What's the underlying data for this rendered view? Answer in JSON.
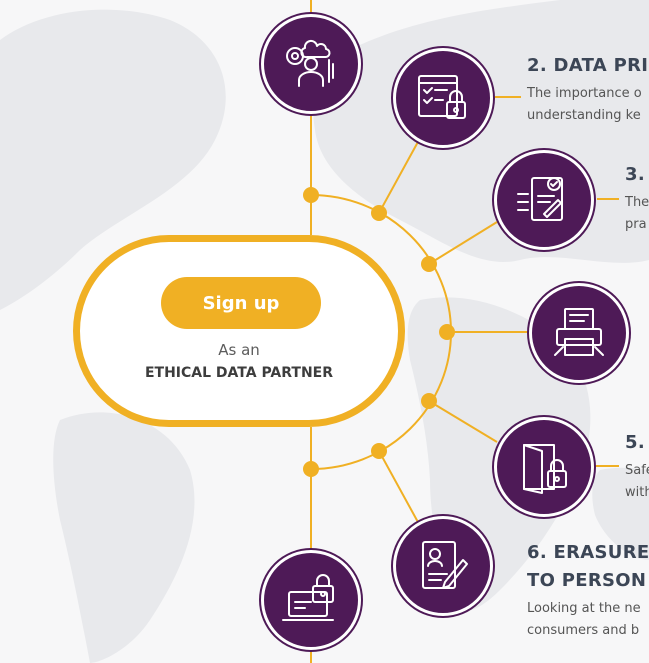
{
  "cta": {
    "signup_label": "Sign up",
    "subtitle": "As an",
    "title": "ETHICAL DATA PARTNER"
  },
  "colors": {
    "accent": "#f0b024",
    "node": "#4e1a57",
    "heading": "#3c4656",
    "map": "#e8e9ec"
  },
  "nodes": [
    {
      "icon": "person-cloud-gear-icon"
    },
    {
      "icon": "checklist-lock-icon",
      "heading": "2. DATA PRI",
      "desc_lines": [
        "The importance o",
        "understanding ke"
      ]
    },
    {
      "icon": "document-signature-icon",
      "heading": "3.",
      "desc_lines": [
        "The",
        "pra"
      ]
    },
    {
      "icon": "printer-document-icon"
    },
    {
      "icon": "door-lock-icon",
      "heading": "5.",
      "desc_lines": [
        "Safe",
        "with"
      ]
    },
    {
      "icon": "profile-document-pen-icon",
      "heading_lines": [
        "6. ERASURE",
        "TO PERSON"
      ],
      "desc_lines": [
        "Looking at the ne",
        "consumers and b"
      ]
    },
    {
      "icon": "laptop-lock-icon"
    }
  ]
}
